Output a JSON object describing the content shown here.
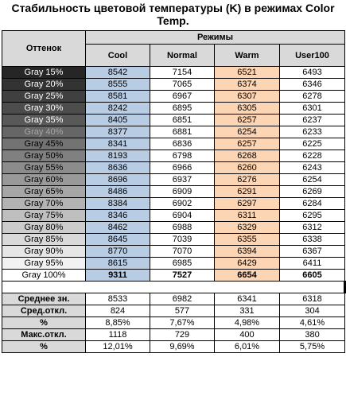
{
  "title": "Стабильность цветовой температуры (K) в режимах Color Temp.",
  "headers": {
    "shade": "Оттенок",
    "modes": "Режимы",
    "columns": [
      "Cool",
      "Normal",
      "Warm",
      "User100"
    ]
  },
  "colors": {
    "cool": "#b8cce4",
    "warm": "#fcd5b4",
    "header": "#d9d9d9"
  },
  "rows": [
    {
      "label": "Gray 15%",
      "bg": "#262626",
      "fg": "#ffffff",
      "values": [
        "8542",
        "7154",
        "6521",
        "6493"
      ]
    },
    {
      "label": "Gray 20%",
      "bg": "#333333",
      "fg": "#ffffff",
      "values": [
        "8555",
        "7065",
        "6374",
        "6346"
      ]
    },
    {
      "label": "Gray 25%",
      "bg": "#404040",
      "fg": "#ffffff",
      "values": [
        "8581",
        "6967",
        "6307",
        "6278"
      ]
    },
    {
      "label": "Gray 30%",
      "bg": "#4d4d4d",
      "fg": "#ffffff",
      "values": [
        "8242",
        "6895",
        "6305",
        "6301"
      ]
    },
    {
      "label": "Gray 35%",
      "bg": "#595959",
      "fg": "#ffffff",
      "values": [
        "8405",
        "6851",
        "6257",
        "6237"
      ]
    },
    {
      "label": "Gray 40%",
      "bg": "#666666",
      "fg": "#a6a6a6",
      "values": [
        "8377",
        "6881",
        "6254",
        "6233"
      ]
    },
    {
      "label": "Gray 45%",
      "bg": "#737373",
      "fg": "#000000",
      "values": [
        "8341",
        "6836",
        "6257",
        "6225"
      ]
    },
    {
      "label": "Gray 50%",
      "bg": "#808080",
      "fg": "#000000",
      "values": [
        "8193",
        "6798",
        "6268",
        "6228"
      ]
    },
    {
      "label": "Gray 55%",
      "bg": "#8c8c8c",
      "fg": "#000000",
      "values": [
        "8636",
        "6966",
        "6260",
        "6243"
      ]
    },
    {
      "label": "Gray 60%",
      "bg": "#999999",
      "fg": "#000000",
      "values": [
        "8696",
        "6937",
        "6276",
        "6254"
      ]
    },
    {
      "label": "Gray 65%",
      "bg": "#a6a6a6",
      "fg": "#000000",
      "values": [
        "8486",
        "6909",
        "6291",
        "6269"
      ]
    },
    {
      "label": "Gray 70%",
      "bg": "#b3b3b3",
      "fg": "#000000",
      "values": [
        "8384",
        "6902",
        "6297",
        "6284"
      ]
    },
    {
      "label": "Gray 75%",
      "bg": "#bfbfbf",
      "fg": "#000000",
      "values": [
        "8346",
        "6904",
        "6311",
        "6295"
      ]
    },
    {
      "label": "Gray 80%",
      "bg": "#cccccc",
      "fg": "#000000",
      "values": [
        "8462",
        "6988",
        "6329",
        "6312"
      ]
    },
    {
      "label": "Gray 85%",
      "bg": "#d9d9d9",
      "fg": "#000000",
      "values": [
        "8645",
        "7039",
        "6355",
        "6338"
      ]
    },
    {
      "label": "Gray 90%",
      "bg": "#e6e6e6",
      "fg": "#000000",
      "values": [
        "8770",
        "7070",
        "6394",
        "6367"
      ]
    },
    {
      "label": "Gray 95%",
      "bg": "#f2f2f2",
      "fg": "#000000",
      "values": [
        "8615",
        "6985",
        "6429",
        "6411"
      ]
    },
    {
      "label": "Gray 100%",
      "bg": "#ffffff",
      "fg": "#000000",
      "values": [
        "9311",
        "7527",
        "6654",
        "6605"
      ],
      "bold": true
    }
  ],
  "stats": [
    {
      "label": "Среднее зн.",
      "values": [
        "8533",
        "6982",
        "6341",
        "6318"
      ]
    },
    {
      "label": "Сред.откл.",
      "values": [
        "824",
        "577",
        "331",
        "304"
      ]
    },
    {
      "label": "%",
      "values": [
        "8,85%",
        "7,67%",
        "4,98%",
        "4,61%"
      ]
    },
    {
      "label": "Макс.откл.",
      "values": [
        "1118",
        "729",
        "400",
        "380"
      ]
    },
    {
      "label": "%",
      "values": [
        "12,01%",
        "9,69%",
        "6,01%",
        "5,75%"
      ]
    }
  ]
}
